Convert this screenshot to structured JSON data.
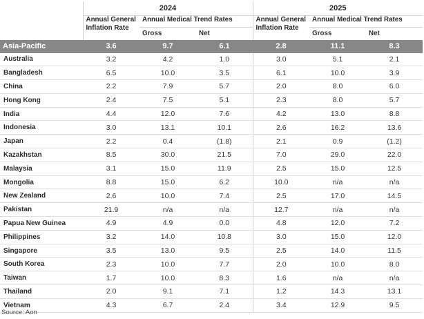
{
  "years": [
    "2024",
    "2025"
  ],
  "headers": {
    "inflation": "Annual General Inflation Rate",
    "trend": "Annual Medical Trend Rates",
    "gross": "Gross",
    "net": "Net"
  },
  "region": {
    "name": "Asia-Pacific",
    "values": [
      "3.6",
      "9.7",
      "6.1",
      "2.8",
      "11.1",
      "8.3"
    ]
  },
  "rows": [
    {
      "name": "Australia",
      "values": [
        "3.2",
        "4.2",
        "1.0",
        "3.0",
        "5.1",
        "2.1"
      ]
    },
    {
      "name": "Bangladesh",
      "values": [
        "6.5",
        "10.0",
        "3.5",
        "6.1",
        "10.0",
        "3.9"
      ]
    },
    {
      "name": "China",
      "values": [
        "2.2",
        "7.9",
        "5.7",
        "2.0",
        "8.0",
        "6.0"
      ]
    },
    {
      "name": "Hong Kong",
      "values": [
        "2.4",
        "7.5",
        "5.1",
        "2.3",
        "8.0",
        "5.7"
      ]
    },
    {
      "name": "India",
      "values": [
        "4.4",
        "12.0",
        "7.6",
        "4.2",
        "13.0",
        "8.8"
      ]
    },
    {
      "name": "Indonesia",
      "values": [
        "3.0",
        "13.1",
        "10.1",
        "2.6",
        "16.2",
        "13.6"
      ]
    },
    {
      "name": "Japan",
      "values": [
        "2.2",
        "0.4",
        "(1.8)",
        "2.1",
        "0.9",
        "(1.2)"
      ]
    },
    {
      "name": "Kazakhstan",
      "values": [
        "8.5",
        "30.0",
        "21.5",
        "7.0",
        "29.0",
        "22.0"
      ]
    },
    {
      "name": "Malaysia",
      "values": [
        "3.1",
        "15.0",
        "11.9",
        "2.5",
        "15.0",
        "12.5"
      ]
    },
    {
      "name": "Mongolia",
      "values": [
        "8.8",
        "15.0",
        "6.2",
        "10.0",
        "n/a",
        "n/a"
      ]
    },
    {
      "name": "New Zealand",
      "values": [
        "2.6",
        "10.0",
        "7.4",
        "2.5",
        "17.0",
        "14.5"
      ]
    },
    {
      "name": "Pakistan",
      "values": [
        "21.9",
        "n/a",
        "n/a",
        "12.7",
        "n/a",
        "n/a"
      ]
    },
    {
      "name": "Papua New Guinea",
      "values": [
        "4.9",
        "4.9",
        "0.0",
        "4.8",
        "12.0",
        "7.2"
      ]
    },
    {
      "name": "Philippines",
      "values": [
        "3.2",
        "14.0",
        "10.8",
        "3.0",
        "15.0",
        "12.0"
      ]
    },
    {
      "name": "Singapore",
      "values": [
        "3.5",
        "13.0",
        "9.5",
        "2.5",
        "14.0",
        "11.5"
      ]
    },
    {
      "name": "South Korea",
      "values": [
        "2.3",
        "10.0",
        "7.7",
        "2.0",
        "10.0",
        "8.0"
      ]
    },
    {
      "name": "Taiwan",
      "values": [
        "1.7",
        "10.0",
        "8.3",
        "1.6",
        "n/a",
        "n/a"
      ]
    },
    {
      "name": "Thailand",
      "values": [
        "2.0",
        "9.1",
        "7.1",
        "1.2",
        "14.3",
        "13.1"
      ]
    },
    {
      "name": "Vietnam",
      "values": [
        "4.3",
        "6.7",
        "2.4",
        "3.4",
        "12.9",
        "9.5"
      ]
    }
  ],
  "source": "Source: Aon"
}
